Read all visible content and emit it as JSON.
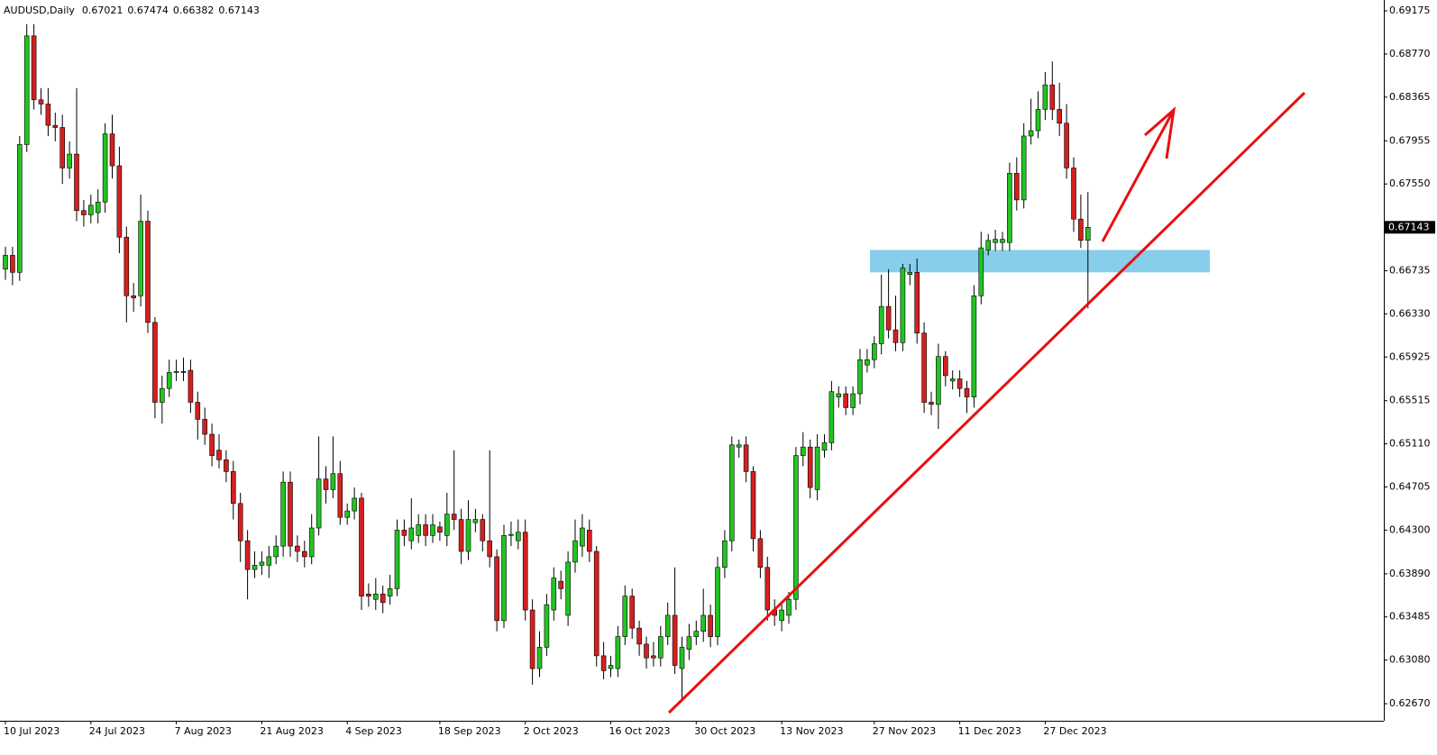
{
  "chart_data": {
    "type": "candlestick",
    "title": "AUDUSD,Daily",
    "categories": [
      "10 Jul 2023",
      null,
      null,
      null,
      null,
      null,
      null,
      null,
      null,
      null,
      null,
      null,
      "24 Jul 2023",
      null,
      null,
      null,
      null,
      null,
      null,
      null,
      null,
      null,
      null,
      null,
      "7 Aug 2023",
      null,
      null,
      null,
      null,
      null,
      null,
      null,
      null,
      null,
      null,
      null,
      "21 Aug 2023",
      null,
      null,
      null,
      null,
      null,
      null,
      null,
      null,
      null,
      null,
      null,
      "4 Sep 2023",
      null,
      null,
      null,
      null,
      null,
      null,
      null,
      null,
      null,
      null,
      null,
      null,
      "18 Sep 2023",
      null,
      null,
      null,
      null,
      null,
      null,
      null,
      null,
      null,
      null,
      null,
      "2 Oct 2023",
      null,
      null,
      null,
      null,
      null,
      null,
      null,
      null,
      null,
      null,
      null,
      "16 Oct 2023",
      null,
      null,
      null,
      null,
      null,
      null,
      null,
      null,
      null,
      null,
      null,
      "30 Oct 2023",
      null,
      null,
      null,
      null,
      null,
      null,
      null,
      null,
      null,
      null,
      null,
      "13 Nov 2023",
      null,
      null,
      null,
      null,
      null,
      null,
      null,
      null,
      null,
      null,
      null,
      null,
      "27 Nov 2023",
      null,
      null,
      null,
      null,
      null,
      null,
      null,
      null,
      null,
      null,
      null,
      "11 Dec 2023",
      null,
      null,
      null,
      null,
      null,
      null,
      null,
      null,
      null,
      null,
      null,
      "27 Dec 2023",
      null,
      null,
      null,
      null,
      null,
      null
    ],
    "open": [
      0.6675,
      0.6688,
      0.6672,
      0.6792,
      0.6894,
      0.6834,
      0.683,
      0.681,
      0.6808,
      0.677,
      0.6783,
      0.673,
      0.6726,
      0.6728,
      0.6738,
      0.6802,
      0.6772,
      0.6705,
      0.665,
      0.665,
      0.672,
      0.6625,
      0.655,
      0.6563,
      0.6578,
      0.6579,
      0.658,
      0.655,
      0.6534,
      0.652,
      0.6505,
      0.6496,
      0.6485,
      0.6455,
      0.642,
      0.6393,
      0.6397,
      0.6397,
      0.6405,
      0.6415,
      0.6475,
      0.6415,
      0.641,
      0.6405,
      0.6432,
      0.6478,
      0.6468,
      0.6483,
      0.6442,
      0.6448,
      0.646,
      0.637,
      0.6365,
      0.637,
      0.6368,
      0.6375,
      0.643,
      0.642,
      0.6425,
      0.6435,
      0.6425,
      0.6433,
      0.6425,
      0.6445,
      0.644,
      0.641,
      0.6437,
      0.644,
      0.642,
      0.6405,
      0.6345,
      0.6425,
      0.642,
      0.6428,
      0.6355,
      0.63,
      0.632,
      0.6355,
      0.6382,
      0.635,
      0.64,
      0.6415,
      0.643,
      0.641,
      0.6312,
      0.63,
      0.63,
      0.633,
      0.6368,
      0.6338,
      0.6323,
      0.6312,
      0.631,
      0.633,
      0.635,
      0.63,
      0.6318,
      0.633,
      0.6335,
      0.635,
      0.633,
      0.6395,
      0.642,
      0.6508,
      0.651,
      0.6485,
      0.6422,
      0.6395,
      0.6355,
      0.6345,
      0.635,
      0.6365,
      0.65,
      0.6508,
      0.6468,
      0.6505,
      0.6512,
      0.6555,
      0.6558,
      0.6545,
      0.6558,
      0.6585,
      0.659,
      0.6605,
      0.664,
      0.6618,
      0.6606,
      0.667,
      0.6672,
      0.6615,
      0.655,
      0.6548,
      0.6593,
      0.657,
      0.6572,
      0.6563,
      0.6555,
      0.665,
      0.6693,
      0.67,
      0.67,
      0.67,
      0.6765,
      0.674,
      0.68,
      0.6805,
      0.6825,
      0.6848,
      0.6825,
      0.6812,
      0.677,
      0.6722,
      0.67021
    ],
    "high": [
      0.6696,
      0.6696,
      0.68,
      0.6905,
      0.6905,
      0.6845,
      0.6845,
      0.6822,
      0.682,
      0.6795,
      0.6845,
      0.674,
      0.6745,
      0.675,
      0.6812,
      0.682,
      0.679,
      0.6715,
      0.6662,
      0.6745,
      0.673,
      0.663,
      0.6575,
      0.659,
      0.659,
      0.6592,
      0.659,
      0.656,
      0.6545,
      0.653,
      0.652,
      0.6505,
      0.6495,
      0.6465,
      0.643,
      0.641,
      0.641,
      0.6415,
      0.6425,
      0.6485,
      0.6485,
      0.6425,
      0.642,
      0.6445,
      0.6518,
      0.649,
      0.6518,
      0.6495,
      0.6455,
      0.647,
      0.6465,
      0.638,
      0.6385,
      0.6378,
      0.6388,
      0.644,
      0.644,
      0.646,
      0.6445,
      0.6445,
      0.6445,
      0.6438,
      0.6465,
      0.6505,
      0.645,
      0.6458,
      0.645,
      0.6445,
      0.6505,
      0.6412,
      0.6435,
      0.6438,
      0.644,
      0.644,
      0.6365,
      0.6335,
      0.637,
      0.6395,
      0.6392,
      0.641,
      0.644,
      0.6445,
      0.644,
      0.6415,
      0.6325,
      0.6312,
      0.634,
      0.6378,
      0.6375,
      0.6345,
      0.633,
      0.6325,
      0.634,
      0.6362,
      0.6395,
      0.633,
      0.6342,
      0.6345,
      0.6375,
      0.636,
      0.6405,
      0.643,
      0.6518,
      0.6515,
      0.6518,
      0.649,
      0.643,
      0.6405,
      0.6365,
      0.6362,
      0.6372,
      0.6508,
      0.6522,
      0.6515,
      0.652,
      0.652,
      0.657,
      0.6565,
      0.6565,
      0.6565,
      0.66,
      0.66,
      0.6612,
      0.667,
      0.6675,
      0.665,
      0.668,
      0.668,
      0.6685,
      0.6625,
      0.656,
      0.6605,
      0.6598,
      0.658,
      0.658,
      0.657,
      0.666,
      0.671,
      0.6708,
      0.6712,
      0.671,
      0.6775,
      0.678,
      0.6812,
      0.6835,
      0.6842,
      0.686,
      0.687,
      0.685,
      0.683,
      0.678,
      0.6745,
      0.67474
    ],
    "low": [
      0.6665,
      0.666,
      0.6664,
      0.6785,
      0.6825,
      0.682,
      0.68,
      0.6795,
      0.6755,
      0.676,
      0.672,
      0.6715,
      0.6718,
      0.6718,
      0.6728,
      0.676,
      0.669,
      0.6625,
      0.6635,
      0.664,
      0.6615,
      0.6535,
      0.653,
      0.6555,
      0.657,
      0.657,
      0.654,
      0.6515,
      0.651,
      0.649,
      0.6488,
      0.6475,
      0.644,
      0.64,
      0.6365,
      0.6385,
      0.6388,
      0.6385,
      0.6398,
      0.6405,
      0.6405,
      0.64,
      0.6395,
      0.6398,
      0.6425,
      0.6455,
      0.646,
      0.6435,
      0.6435,
      0.644,
      0.6355,
      0.6358,
      0.6355,
      0.6352,
      0.636,
      0.6368,
      0.6415,
      0.6412,
      0.6418,
      0.6415,
      0.6418,
      0.642,
      0.6415,
      0.643,
      0.6398,
      0.6402,
      0.6428,
      0.641,
      0.6395,
      0.6335,
      0.6338,
      0.6415,
      0.6412,
      0.6345,
      0.6285,
      0.6292,
      0.6312,
      0.6345,
      0.6365,
      0.634,
      0.639,
      0.6405,
      0.64,
      0.6302,
      0.629,
      0.6292,
      0.6292,
      0.6322,
      0.6328,
      0.6312,
      0.63,
      0.6302,
      0.6302,
      0.6322,
      0.6295,
      0.6269,
      0.6308,
      0.6322,
      0.6325,
      0.632,
      0.6322,
      0.6385,
      0.641,
      0.6498,
      0.6475,
      0.641,
      0.6385,
      0.6345,
      0.634,
      0.6335,
      0.6342,
      0.6355,
      0.649,
      0.646,
      0.6458,
      0.6498,
      0.6505,
      0.6545,
      0.6538,
      0.6538,
      0.6548,
      0.6578,
      0.6582,
      0.6595,
      0.661,
      0.6598,
      0.6598,
      0.666,
      0.6605,
      0.654,
      0.6538,
      0.6525,
      0.6565,
      0.6562,
      0.6555,
      0.654,
      0.6545,
      0.6642,
      0.6688,
      0.6692,
      0.6692,
      0.6692,
      0.673,
      0.6732,
      0.6792,
      0.6798,
      0.6815,
      0.6815,
      0.68,
      0.676,
      0.671,
      0.6695,
      0.66382
    ],
    "close": [
      0.6688,
      0.6672,
      0.6792,
      0.6894,
      0.6834,
      0.683,
      0.681,
      0.6808,
      0.677,
      0.6783,
      0.673,
      0.6726,
      0.6735,
      0.6738,
      0.6802,
      0.6772,
      0.6705,
      0.665,
      0.6648,
      0.672,
      0.6625,
      0.655,
      0.6563,
      0.6578,
      0.6579,
      0.6578,
      0.655,
      0.6534,
      0.652,
      0.65,
      0.6496,
      0.6485,
      0.6455,
      0.642,
      0.6393,
      0.6397,
      0.64,
      0.6405,
      0.6415,
      0.6475,
      0.6415,
      0.641,
      0.6405,
      0.6432,
      0.6478,
      0.6468,
      0.6483,
      0.6442,
      0.6448,
      0.646,
      0.6368,
      0.6368,
      0.637,
      0.6362,
      0.6375,
      0.643,
      0.6425,
      0.6432,
      0.6435,
      0.6425,
      0.6435,
      0.6428,
      0.6445,
      0.644,
      0.641,
      0.644,
      0.644,
      0.642,
      0.6405,
      0.6345,
      0.6425,
      0.6426,
      0.6428,
      0.6355,
      0.63,
      0.632,
      0.636,
      0.6385,
      0.6375,
      0.64,
      0.642,
      0.6432,
      0.641,
      0.6312,
      0.6298,
      0.6303,
      0.633,
      0.6368,
      0.6338,
      0.6323,
      0.631,
      0.631,
      0.633,
      0.635,
      0.6303,
      0.632,
      0.633,
      0.6335,
      0.635,
      0.633,
      0.6395,
      0.642,
      0.651,
      0.651,
      0.6485,
      0.6422,
      0.6395,
      0.6355,
      0.635,
      0.6355,
      0.6365,
      0.65,
      0.6508,
      0.647,
      0.6508,
      0.6512,
      0.656,
      0.6558,
      0.6545,
      0.6558,
      0.659,
      0.659,
      0.6605,
      0.664,
      0.6618,
      0.6606,
      0.6676,
      0.6672,
      0.6615,
      0.655,
      0.6548,
      0.6593,
      0.6575,
      0.6572,
      0.6563,
      0.6555,
      0.665,
      0.6695,
      0.6702,
      0.6703,
      0.6703,
      0.6765,
      0.674,
      0.68,
      0.6805,
      0.6825,
      0.6848,
      0.6825,
      0.6812,
      0.677,
      0.6722,
      0.6702,
      0.67143
    ],
    "up_color": "#22c422",
    "down_color": "#d42020",
    "zone": [
      0.6672,
      0.6693
    ],
    "zone_color": "#87ceeb",
    "ylim": [
      0.6251,
      0.69277
    ],
    "yticks": [
      0.69175,
      {
        "value": 0.6877,
        "label": "0.68770"
      },
      0.68365,
      0.67955,
      {
        "value": 0.6755,
        "label": "0.67550"
      },
      0.66735,
      {
        "value": 0.6633,
        "label": "0.66330"
      },
      0.65925,
      0.65515,
      {
        "value": 0.6511,
        "label": "0.65110"
      },
      0.64705,
      {
        "value": 0.643,
        "label": "0.64300"
      },
      {
        "value": 0.6389,
        "label": "0.63890"
      },
      0.63485,
      {
        "value": 0.6308,
        "label": "0.63080"
      },
      {
        "value": 0.6267,
        "label": "0.62670"
      }
    ]
  }
}
